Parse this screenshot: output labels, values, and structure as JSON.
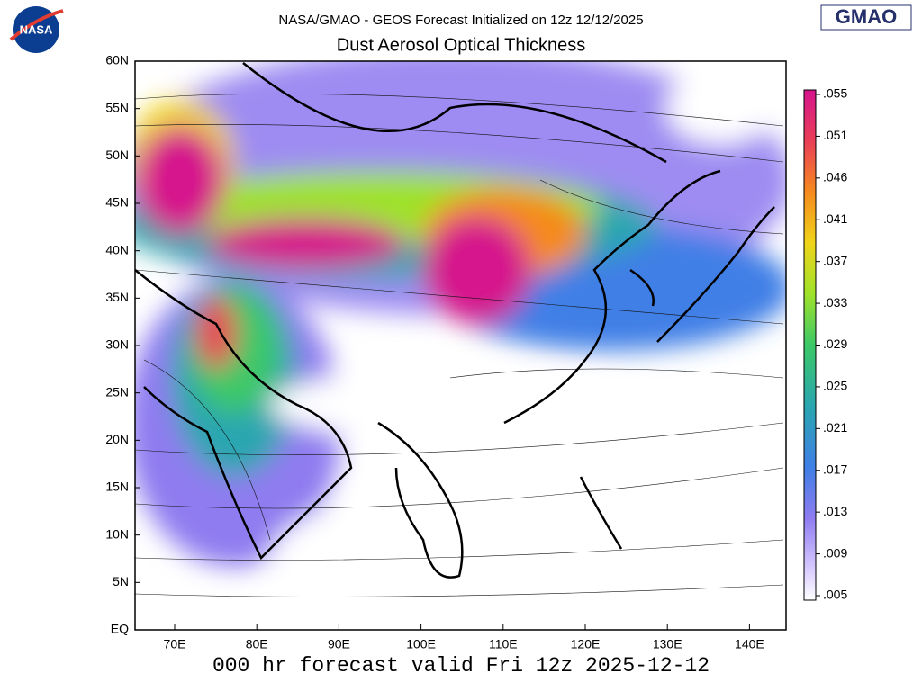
{
  "header": {
    "subtitle": "NASA/GMAO - GEOS Forecast Initialized on 12z 12/12/2025",
    "title": "Dust Aerosol Optical Thickness",
    "logo_left": "NASA",
    "logo_right": "GMAO"
  },
  "map": {
    "lat_ticks": [
      "60N",
      "55N",
      "50N",
      "45N",
      "40N",
      "35N",
      "30N",
      "25N",
      "20N",
      "15N",
      "10N",
      "5N",
      "EQ"
    ],
    "lon_ticks": [
      "70E",
      "80E",
      "90E",
      "100E",
      "110E",
      "120E",
      "130E",
      "140E"
    ]
  },
  "colorbar": {
    "ticks": [
      ".055",
      ".051",
      ".046",
      ".041",
      ".037",
      ".033",
      ".029",
      ".025",
      ".021",
      ".017",
      ".013",
      ".009",
      ".005"
    ]
  },
  "footer": "000 hr forecast valid Fri 12z 2025-12-12"
}
